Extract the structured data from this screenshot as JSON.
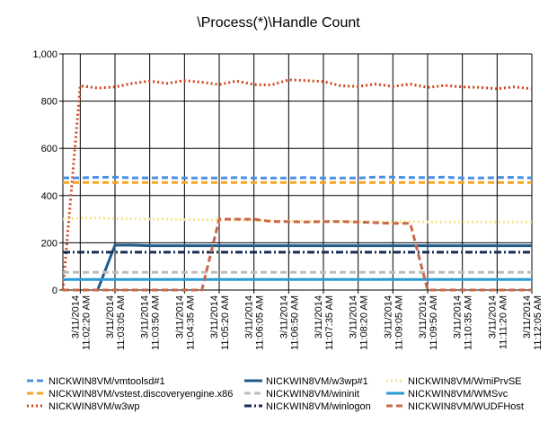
{
  "chart_data": {
    "type": "line",
    "title": "\\Process(*)\\Handle Count",
    "xlabel": "",
    "ylabel": "",
    "ylim": [
      0,
      1000
    ],
    "yticks": [
      "0",
      "200",
      "400",
      "600",
      "800",
      "1,000"
    ],
    "grid": true,
    "legend_position": "bottom",
    "x": [
      "3/11/2014 11:01:35 AM",
      "3/11/2014 11:02:20 AM",
      "3/11/2014 11:02:42 AM",
      "3/11/2014 11:03:05 AM",
      "3/11/2014 11:03:27 AM",
      "3/11/2014 11:03:50 AM",
      "3/11/2014 11:04:12 AM",
      "3/11/2014 11:04:35 AM",
      "3/11/2014 11:04:57 AM",
      "3/11/2014 11:05:20 AM",
      "3/11/2014 11:05:42 AM",
      "3/11/2014 11:06:05 AM",
      "3/11/2014 11:06:27 AM",
      "3/11/2014 11:06:50 AM",
      "3/11/2014 11:07:12 AM",
      "3/11/2014 11:07:35 AM",
      "3/11/2014 11:07:57 AM",
      "3/11/2014 11:08:20 AM",
      "3/11/2014 11:08:42 AM",
      "3/11/2014 11:09:05 AM",
      "3/11/2014 11:09:27 AM",
      "3/11/2014 11:09:50 AM",
      "3/11/2014 11:10:12 AM",
      "3/11/2014 11:10:35 AM",
      "3/11/2014 11:10:57 AM",
      "3/11/2014 11:11:20 AM",
      "3/11/2014 11:11:42 AM",
      "3/11/2014 11:12:05 AM"
    ],
    "x_tick_labels": [
      {
        "index": 1,
        "date": "3/11/2014",
        "time": "11:02:20 AM"
      },
      {
        "index": 3,
        "date": "3/11/2014",
        "time": "11:03:05 AM"
      },
      {
        "index": 5,
        "date": "3/11/2014",
        "time": "11:03:50 AM"
      },
      {
        "index": 7,
        "date": "3/11/2014",
        "time": "11:04:35 AM"
      },
      {
        "index": 9,
        "date": "3/11/2014",
        "time": "11:05:20 AM"
      },
      {
        "index": 11,
        "date": "3/11/2014",
        "time": "11:06:05 AM"
      },
      {
        "index": 13,
        "date": "3/11/2014",
        "time": "11:06:50 AM"
      },
      {
        "index": 15,
        "date": "3/11/2014",
        "time": "11:07:35 AM"
      },
      {
        "index": 17,
        "date": "3/11/2014",
        "time": "11:08:20 AM"
      },
      {
        "index": 19,
        "date": "3/11/2014",
        "time": "11:09:05 AM"
      },
      {
        "index": 21,
        "date": "3/11/2014",
        "time": "11:09:50 AM"
      },
      {
        "index": 23,
        "date": "3/11/2014",
        "time": "11:10:35 AM"
      },
      {
        "index": 25,
        "date": "3/11/2014",
        "time": "11:11:20 AM"
      },
      {
        "index": 27,
        "date": "3/11/2014",
        "time": "11:12:05 AM"
      }
    ],
    "series": [
      {
        "name": "NICKWIN8VM/vmtoolsd#1",
        "color": "#4A90E2",
        "dash": "dash",
        "values": [
          475,
          475,
          477,
          478,
          475,
          475,
          476,
          474,
          474,
          474,
          476,
          474,
          474,
          474,
          476,
          474,
          474,
          474,
          478,
          478,
          476,
          476,
          478,
          474,
          474,
          476,
          477,
          475
        ]
      },
      {
        "name": "NICKWIN8VM/vstest.discoveryengine.x86",
        "color": "#F5A623",
        "dash": "dash",
        "values": [
          455,
          455,
          455,
          455,
          455,
          455,
          455,
          455,
          455,
          455,
          455,
          455,
          455,
          455,
          455,
          455,
          455,
          455,
          455,
          455,
          455,
          455,
          455,
          455,
          455,
          455,
          455,
          455
        ]
      },
      {
        "name": "NICKWIN8VM/w3wp",
        "color": "#D0441C",
        "dash": "dot",
        "values": [
          0,
          865,
          855,
          860,
          875,
          885,
          875,
          887,
          880,
          870,
          885,
          870,
          868,
          890,
          887,
          883,
          865,
          862,
          872,
          862,
          872,
          858,
          866,
          860,
          858,
          852,
          860,
          852
        ]
      },
      {
        "name": "NICKWIN8VM/w3wp#1",
        "color": "#1F5C8C",
        "dash": "solid",
        "values": [
          null,
          null,
          0,
          190,
          190,
          188,
          188,
          188,
          188,
          188,
          188,
          188,
          188,
          188,
          188,
          188,
          188,
          188,
          188,
          188,
          188,
          188,
          188,
          188,
          188,
          188,
          188,
          188
        ]
      },
      {
        "name": "NICKWIN8VM/wininit",
        "color": "#BDBDBD",
        "dash": "dash",
        "values": [
          75,
          75,
          75,
          75,
          75,
          75,
          75,
          75,
          75,
          75,
          75,
          75,
          75,
          75,
          75,
          75,
          75,
          75,
          75,
          75,
          75,
          75,
          75,
          75,
          75,
          75,
          75,
          75
        ]
      },
      {
        "name": "NICKWIN8VM/winlogon",
        "color": "#162D54",
        "dash": "dashdot",
        "values": [
          160,
          160,
          160,
          160,
          160,
          160,
          160,
          160,
          160,
          160,
          160,
          160,
          160,
          160,
          160,
          160,
          160,
          160,
          160,
          160,
          160,
          160,
          160,
          160,
          160,
          160,
          160,
          160
        ]
      },
      {
        "name": "NICKWIN8VM/WmiPrvSE",
        "color": "#F5E68C",
        "dash": "dot",
        "values": [
          300,
          305,
          305,
          302,
          302,
          300,
          300,
          298,
          298,
          296,
          296,
          294,
          294,
          292,
          292,
          292,
          290,
          290,
          290,
          290,
          290,
          288,
          288,
          288,
          288,
          288,
          288,
          288
        ]
      },
      {
        "name": "NICKWIN8VM/WMSvc",
        "color": "#2A9BD6",
        "dash": "solid",
        "values": [
          45,
          45,
          45,
          45,
          45,
          45,
          45,
          45,
          45,
          45,
          45,
          45,
          45,
          45,
          45,
          45,
          45,
          45,
          45,
          45,
          45,
          45,
          45,
          45,
          45,
          45,
          45,
          45
        ]
      },
      {
        "name": "NICKWIN8VM/WUDFHost",
        "color": "#C9684A",
        "dash": "dash",
        "values": [
          0,
          0,
          0,
          0,
          0,
          0,
          0,
          0,
          0,
          300,
          300,
          300,
          290,
          290,
          288,
          290,
          290,
          288,
          285,
          282,
          282,
          0,
          0,
          0,
          0,
          0,
          0,
          0
        ]
      }
    ]
  }
}
